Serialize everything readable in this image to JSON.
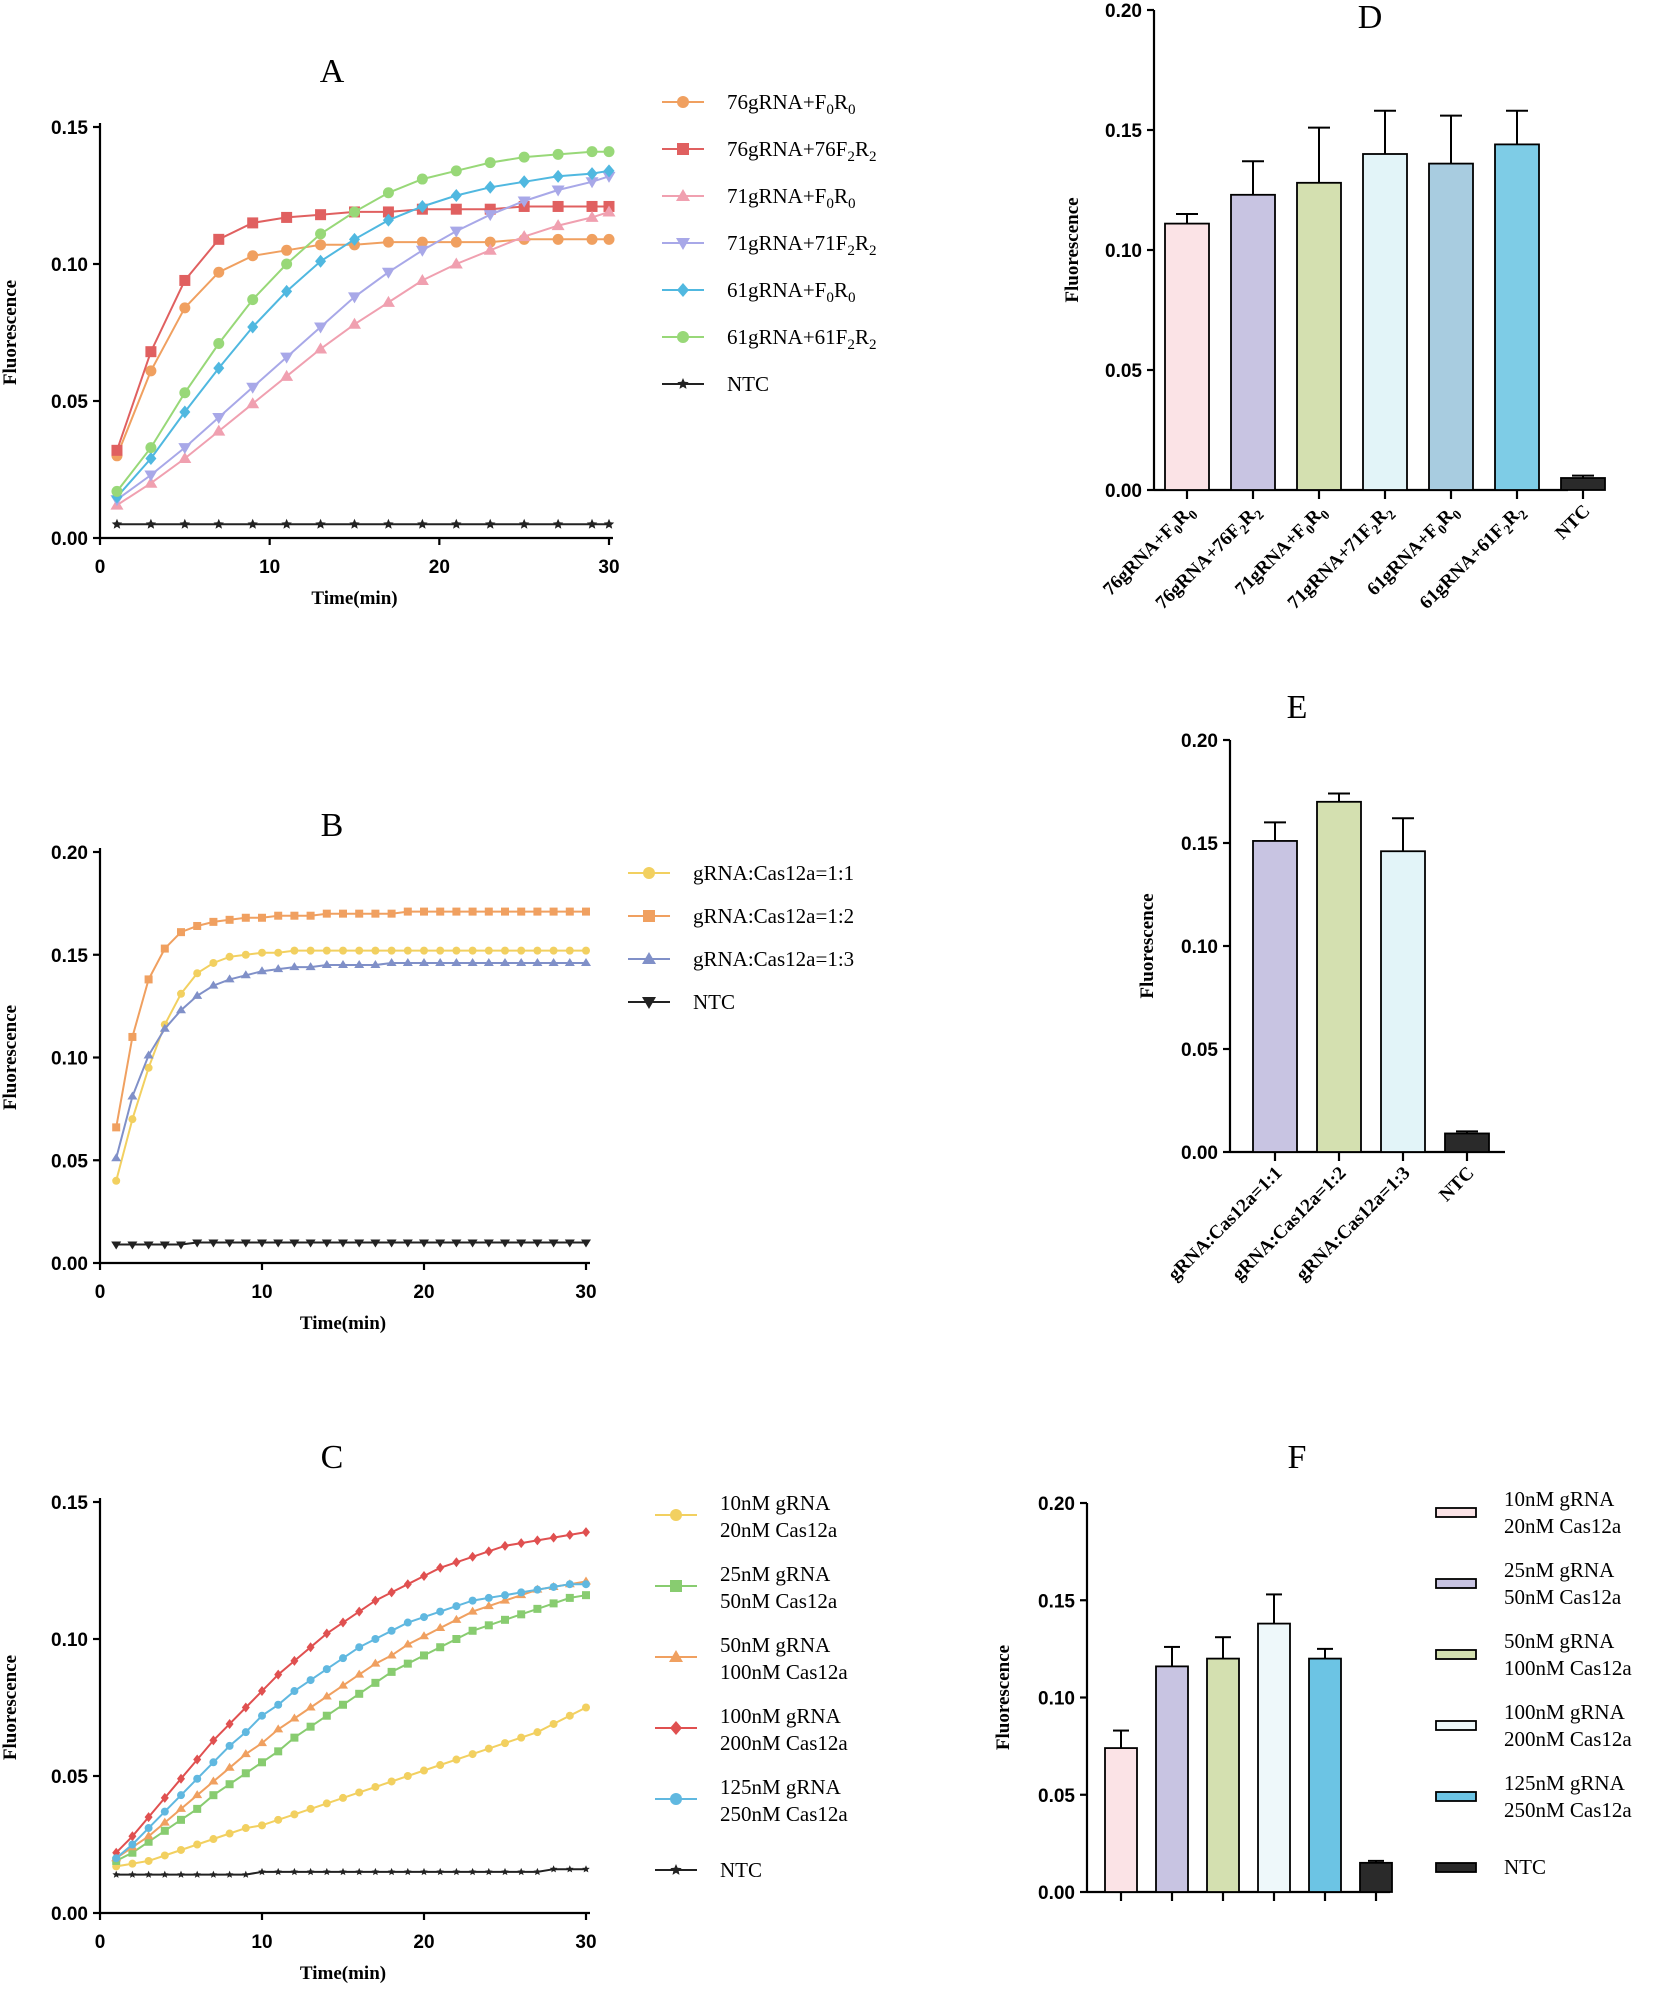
{
  "chart_data": [
    {
      "panel": "A",
      "type": "line",
      "title": "A",
      "xlabel": "Time(min)",
      "ylabel": "Fluorescence",
      "xlim": [
        0,
        30
      ],
      "ylim": [
        0,
        0.15
      ],
      "xticks": [
        "0",
        "10",
        "20",
        "30"
      ],
      "yticks": [
        "0.00",
        "0.05",
        "0.10",
        "0.15"
      ],
      "x": [
        1,
        3,
        5,
        7,
        9,
        11,
        13,
        15,
        17,
        19,
        21,
        23,
        25,
        27,
        29,
        30
      ],
      "series": [
        {
          "name": "76gRNA+F0R0",
          "base": "76gRNA+F",
          "s1": "0",
          "mid": "R",
          "s2": "0",
          "color": "#F0A060",
          "marker": "circle",
          "values": [
            0.03,
            0.061,
            0.084,
            0.097,
            0.103,
            0.105,
            0.107,
            0.107,
            0.108,
            0.108,
            0.108,
            0.108,
            0.109,
            0.109,
            0.109,
            0.109
          ]
        },
        {
          "name": "76gRNA+76F2R2",
          "base": "76gRNA+76F",
          "s1": "2",
          "mid": "R",
          "s2": "2",
          "color": "#E06060",
          "marker": "square",
          "values": [
            0.032,
            0.068,
            0.094,
            0.109,
            0.115,
            0.117,
            0.118,
            0.119,
            0.119,
            0.12,
            0.12,
            0.12,
            0.121,
            0.121,
            0.121,
            0.121
          ]
        },
        {
          "name": "71gRNA+F0R0",
          "base": "71gRNA+F",
          "s1": "0",
          "mid": "R",
          "s2": "0",
          "color": "#F0A0B0",
          "marker": "triangle",
          "values": [
            0.012,
            0.02,
            0.029,
            0.039,
            0.049,
            0.059,
            0.069,
            0.078,
            0.086,
            0.094,
            0.1,
            0.105,
            0.11,
            0.114,
            0.117,
            0.119
          ]
        },
        {
          "name": "71gRNA+71F2R2",
          "base": "71gRNA+71F",
          "s1": "2",
          "mid": "R",
          "s2": "2",
          "color": "#A8A8E8",
          "marker": "triangle-down",
          "values": [
            0.014,
            0.023,
            0.033,
            0.044,
            0.055,
            0.066,
            0.077,
            0.088,
            0.097,
            0.105,
            0.112,
            0.118,
            0.123,
            0.127,
            0.13,
            0.132
          ]
        },
        {
          "name": "61gRNA+F0R0",
          "base": "61gRNA+F",
          "s1": "0",
          "mid": "R",
          "s2": "0",
          "color": "#50B8E0",
          "marker": "diamond",
          "values": [
            0.015,
            0.029,
            0.046,
            0.062,
            0.077,
            0.09,
            0.101,
            0.109,
            0.116,
            0.121,
            0.125,
            0.128,
            0.13,
            0.132,
            0.133,
            0.134
          ]
        },
        {
          "name": "61gRNA+61F2R2",
          "base": "61gRNA+61F",
          "s1": "2",
          "mid": "R",
          "s2": "2",
          "color": "#98D878",
          "marker": "circle",
          "values": [
            0.017,
            0.033,
            0.053,
            0.071,
            0.087,
            0.1,
            0.111,
            0.119,
            0.126,
            0.131,
            0.134,
            0.137,
            0.139,
            0.14,
            0.141,
            0.141
          ]
        },
        {
          "name": "NTC",
          "base": "NTC",
          "s1": "",
          "mid": "",
          "s2": "",
          "color": "#222222",
          "marker": "star",
          "values": [
            0.005,
            0.005,
            0.005,
            0.005,
            0.005,
            0.005,
            0.005,
            0.005,
            0.005,
            0.005,
            0.005,
            0.005,
            0.005,
            0.005,
            0.005,
            0.005
          ]
        }
      ]
    },
    {
      "panel": "D",
      "type": "bar",
      "title": "D",
      "ylabel": "Fluorescence",
      "ylim": [
        0,
        0.2
      ],
      "yticks": [
        "0.00",
        "0.05",
        "0.10",
        "0.15",
        "0.20"
      ],
      "categories": [
        "76gRNA+F0R0",
        "76gRNA+76F2R2",
        "71gRNA+F0R0",
        "71gRNA+71F2R2",
        "61gRNA+F0R0",
        "61gRNA+61F2R2",
        "NTC"
      ],
      "category_labels": [
        {
          "base": "76gRNA+F",
          "s1": "0",
          "mid": "R",
          "s2": "0"
        },
        {
          "base": "76gRNA+76F",
          "s1": "2",
          "mid": "R",
          "s2": "2"
        },
        {
          "base": "71gRNA+F",
          "s1": "0",
          "mid": "R",
          "s2": "0"
        },
        {
          "base": "71gRNA+71F",
          "s1": "2",
          "mid": "R",
          "s2": "2"
        },
        {
          "base": "61gRNA+F",
          "s1": "0",
          "mid": "R",
          "s2": "0"
        },
        {
          "base": "61gRNA+61F",
          "s1": "2",
          "mid": "R",
          "s2": "2"
        },
        {
          "base": "NTC",
          "s1": "",
          "mid": "",
          "s2": ""
        }
      ],
      "values": [
        0.111,
        0.123,
        0.128,
        0.14,
        0.136,
        0.144,
        0.005
      ],
      "errors": [
        0.004,
        0.014,
        0.023,
        0.018,
        0.02,
        0.014,
        0.001
      ],
      "colors": [
        "#FBE3E6",
        "#C8C4E2",
        "#D4E0B0",
        "#E2F4F8",
        "#A8CCE0",
        "#7ECCE6",
        "#2A2A2A"
      ]
    },
    {
      "panel": "B",
      "type": "line",
      "title": "B",
      "xlabel": "Time(min)",
      "ylabel": "Fluorescence",
      "xlim": [
        0,
        30
      ],
      "ylim": [
        0,
        0.2
      ],
      "xticks": [
        "0",
        "10",
        "20",
        "30"
      ],
      "yticks": [
        "0.00",
        "0.05",
        "0.10",
        "0.15",
        "0.20"
      ],
      "x": [
        1,
        2,
        3,
        4,
        5,
        6,
        7,
        8,
        9,
        10,
        11,
        12,
        13,
        14,
        15,
        16,
        17,
        18,
        19,
        20,
        21,
        22,
        23,
        24,
        25,
        26,
        27,
        28,
        29,
        30
      ],
      "series": [
        {
          "name": "gRNA:Cas12a=1:1",
          "color": "#F2D060",
          "marker": "circle",
          "values": [
            0.04,
            0.07,
            0.095,
            0.116,
            0.131,
            0.141,
            0.146,
            0.149,
            0.15,
            0.151,
            0.151,
            0.152,
            0.152,
            0.152,
            0.152,
            0.152,
            0.152,
            0.152,
            0.152,
            0.152,
            0.152,
            0.152,
            0.152,
            0.152,
            0.152,
            0.152,
            0.152,
            0.152,
            0.152,
            0.152
          ]
        },
        {
          "name": "gRNA:Cas12a=1:2",
          "color": "#F0A060",
          "marker": "square",
          "values": [
            0.066,
            0.11,
            0.138,
            0.153,
            0.161,
            0.164,
            0.166,
            0.167,
            0.168,
            0.168,
            0.169,
            0.169,
            0.169,
            0.17,
            0.17,
            0.17,
            0.17,
            0.17,
            0.171,
            0.171,
            0.171,
            0.171,
            0.171,
            0.171,
            0.171,
            0.171,
            0.171,
            0.171,
            0.171,
            0.171
          ]
        },
        {
          "name": "gRNA:Cas12a=1:3",
          "color": "#8090C8",
          "marker": "triangle",
          "values": [
            0.051,
            0.081,
            0.101,
            0.114,
            0.123,
            0.13,
            0.135,
            0.138,
            0.14,
            0.142,
            0.143,
            0.144,
            0.144,
            0.145,
            0.145,
            0.145,
            0.145,
            0.146,
            0.146,
            0.146,
            0.146,
            0.146,
            0.146,
            0.146,
            0.146,
            0.146,
            0.146,
            0.146,
            0.146,
            0.146
          ]
        },
        {
          "name": "NTC",
          "color": "#222222",
          "marker": "triangle-down",
          "values": [
            0.009,
            0.009,
            0.009,
            0.009,
            0.009,
            0.01,
            0.01,
            0.01,
            0.01,
            0.01,
            0.01,
            0.01,
            0.01,
            0.01,
            0.01,
            0.01,
            0.01,
            0.01,
            0.01,
            0.01,
            0.01,
            0.01,
            0.01,
            0.01,
            0.01,
            0.01,
            0.01,
            0.01,
            0.01,
            0.01
          ]
        }
      ]
    },
    {
      "panel": "E",
      "type": "bar",
      "title": "E",
      "ylabel": "Fluorescence",
      "ylim": [
        0,
        0.2
      ],
      "yticks": [
        "0.00",
        "0.05",
        "0.10",
        "0.15",
        "0.20"
      ],
      "categories": [
        "gRNA:Cas12a=1:1",
        "gRNA:Cas12a=1:2",
        "gRNA:Cas12a=1:3",
        "NTC"
      ],
      "values": [
        0.151,
        0.17,
        0.146,
        0.009
      ],
      "errors": [
        0.009,
        0.004,
        0.016,
        0.001
      ],
      "colors": [
        "#C8C4E2",
        "#D4E0B0",
        "#E2F4F8",
        "#2A2A2A"
      ]
    },
    {
      "panel": "C",
      "type": "line",
      "title": "C",
      "xlabel": "Time(min)",
      "ylabel": "Fluorescence",
      "xlim": [
        0,
        30
      ],
      "ylim": [
        0,
        0.15
      ],
      "xticks": [
        "0",
        "10",
        "20",
        "30"
      ],
      "yticks": [
        "0.00",
        "0.05",
        "0.10",
        "0.15"
      ],
      "x": [
        1,
        2,
        3,
        4,
        5,
        6,
        7,
        8,
        9,
        10,
        11,
        12,
        13,
        14,
        15,
        16,
        17,
        18,
        19,
        20,
        21,
        22,
        23,
        24,
        25,
        26,
        27,
        28,
        29,
        30
      ],
      "series": [
        {
          "name": "10nM gRNA 20nM Cas12a",
          "line1": "10nM gRNA",
          "line2": "20nM Cas12a",
          "color": "#F2D060",
          "marker": "circle",
          "values": [
            0.017,
            0.018,
            0.019,
            0.021,
            0.023,
            0.025,
            0.027,
            0.029,
            0.031,
            0.032,
            0.034,
            0.036,
            0.038,
            0.04,
            0.042,
            0.044,
            0.046,
            0.048,
            0.05,
            0.052,
            0.054,
            0.056,
            0.058,
            0.06,
            0.062,
            0.064,
            0.066,
            0.069,
            0.072,
            0.075
          ]
        },
        {
          "name": "25nM gRNA 50nM Cas12a",
          "line1": "25nM gRNA",
          "line2": "50nM Cas12a",
          "color": "#88CC70",
          "marker": "square",
          "values": [
            0.019,
            0.022,
            0.026,
            0.03,
            0.034,
            0.038,
            0.043,
            0.047,
            0.051,
            0.055,
            0.059,
            0.064,
            0.068,
            0.072,
            0.076,
            0.08,
            0.084,
            0.088,
            0.091,
            0.094,
            0.097,
            0.1,
            0.103,
            0.105,
            0.107,
            0.109,
            0.111,
            0.113,
            0.115,
            0.116
          ]
        },
        {
          "name": "50nM gRNA 100nM Cas12a",
          "line1": "50nM gRNA",
          "line2": "100nM Cas12a",
          "color": "#F0A060",
          "marker": "triangle",
          "values": [
            0.02,
            0.024,
            0.028,
            0.033,
            0.038,
            0.043,
            0.048,
            0.053,
            0.058,
            0.062,
            0.067,
            0.071,
            0.075,
            0.079,
            0.083,
            0.087,
            0.091,
            0.094,
            0.098,
            0.101,
            0.104,
            0.107,
            0.11,
            0.112,
            0.114,
            0.116,
            0.118,
            0.119,
            0.12,
            0.121
          ]
        },
        {
          "name": "100nM gRNA 200nM Cas12a",
          "line1": "100nM gRNA",
          "line2": "200nM Cas12a",
          "color": "#E05050",
          "marker": "diamond",
          "values": [
            0.022,
            0.028,
            0.035,
            0.042,
            0.049,
            0.056,
            0.063,
            0.069,
            0.075,
            0.081,
            0.087,
            0.092,
            0.097,
            0.102,
            0.106,
            0.11,
            0.114,
            0.117,
            0.12,
            0.123,
            0.126,
            0.128,
            0.13,
            0.132,
            0.134,
            0.135,
            0.136,
            0.137,
            0.138,
            0.139
          ]
        },
        {
          "name": "125nM gRNA 250nM Cas12a",
          "line1": "125nM gRNA",
          "line2": "250nM Cas12a",
          "color": "#60B8E0",
          "marker": "circle",
          "values": [
            0.02,
            0.025,
            0.031,
            0.037,
            0.043,
            0.049,
            0.055,
            0.061,
            0.066,
            0.072,
            0.076,
            0.081,
            0.085,
            0.089,
            0.093,
            0.097,
            0.1,
            0.103,
            0.106,
            0.108,
            0.11,
            0.112,
            0.114,
            0.115,
            0.116,
            0.117,
            0.118,
            0.119,
            0.12,
            0.12
          ]
        },
        {
          "name": "NTC",
          "line1": "NTC",
          "line2": "",
          "color": "#222222",
          "marker": "star",
          "values": [
            0.014,
            0.014,
            0.014,
            0.014,
            0.014,
            0.014,
            0.014,
            0.014,
            0.014,
            0.015,
            0.015,
            0.015,
            0.015,
            0.015,
            0.015,
            0.015,
            0.015,
            0.015,
            0.015,
            0.015,
            0.015,
            0.015,
            0.015,
            0.015,
            0.015,
            0.015,
            0.015,
            0.016,
            0.016,
            0.016
          ]
        }
      ]
    },
    {
      "panel": "F",
      "type": "bar",
      "title": "F",
      "ylabel": "Fluorescence",
      "ylim": [
        0,
        0.2
      ],
      "yticks": [
        "0.00",
        "0.05",
        "0.10",
        "0.15",
        "0.20"
      ],
      "categories": [
        "10nM gRNA 20nM Cas12a",
        "25nM gRNA 50nM Cas12a",
        "50nM gRNA 100nM Cas12a",
        "100nM gRNA 200nM Cas12a",
        "125nM gRNA 250nM Cas12a",
        "NTC"
      ],
      "legend": [
        {
          "line1": "10nM gRNA",
          "line2": "20nM Cas12a"
        },
        {
          "line1": "25nM gRNA",
          "line2": "50nM Cas12a"
        },
        {
          "line1": "50nM gRNA",
          "line2": "100nM Cas12a"
        },
        {
          "line1": "100nM gRNA",
          "line2": "200nM Cas12a"
        },
        {
          "line1": "125nM gRNA",
          "line2": "250nM Cas12a"
        },
        {
          "line1": "NTC",
          "line2": ""
        }
      ],
      "values": [
        0.074,
        0.116,
        0.12,
        0.138,
        0.12,
        0.015
      ],
      "errors": [
        0.009,
        0.01,
        0.011,
        0.015,
        0.005,
        0.001
      ],
      "colors": [
        "#FBE3E6",
        "#C8C4E2",
        "#D4E0B0",
        "#EEF8FA",
        "#6CC4E4",
        "#2A2A2A"
      ]
    }
  ]
}
